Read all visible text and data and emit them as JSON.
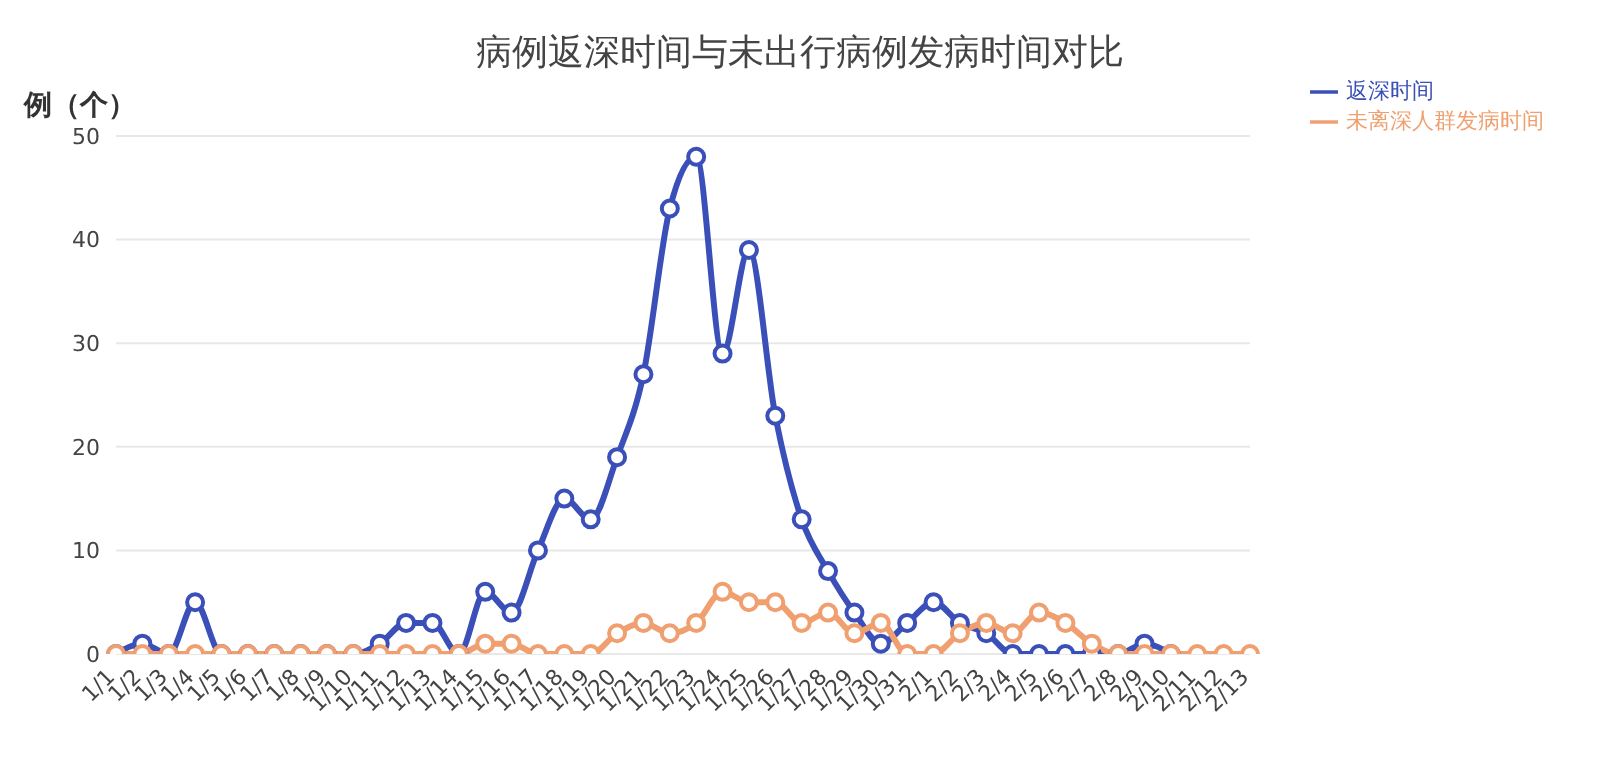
{
  "chart_data": {
    "type": "line",
    "title": "病例返深时间与未出行病例发病时间对比",
    "ylabel": "例（个）",
    "categories": [
      "1/1",
      "1/2",
      "1/3",
      "1/4",
      "1/5",
      "1/6",
      "1/7",
      "1/8",
      "1/9",
      "1/10",
      "1/11",
      "1/12",
      "1/13",
      "1/14",
      "1/15",
      "1/16",
      "1/17",
      "1/18",
      "1/19",
      "1/20",
      "1/21",
      "1/22",
      "1/23",
      "1/24",
      "1/25",
      "1/26",
      "1/27",
      "1/28",
      "1/29",
      "1/30",
      "1/31",
      "2/1",
      "2/2",
      "2/3",
      "2/4",
      "2/5",
      "2/6",
      "2/7",
      "2/8",
      "2/9",
      "2/10",
      "2/11",
      "2/12",
      "2/13"
    ],
    "series": [
      {
        "name": "返深时间",
        "color": "#3a4fb8",
        "values": [
          0,
          1,
          0,
          5,
          0,
          0,
          0,
          0,
          0,
          0,
          1,
          3,
          3,
          0,
          6,
          4,
          10,
          15,
          13,
          19,
          27,
          43,
          48,
          29,
          39,
          23,
          13,
          8,
          4,
          1,
          3,
          5,
          3,
          2,
          0,
          0,
          0,
          0,
          0,
          1,
          0,
          null,
          null,
          null
        ]
      },
      {
        "name": "未离深人群发病时间",
        "color": "#f0a070",
        "values": [
          0,
          0,
          0,
          0,
          0,
          0,
          0,
          0,
          0,
          0,
          0,
          0,
          0,
          0,
          1,
          1,
          0,
          0,
          0,
          2,
          3,
          2,
          3,
          6,
          5,
          5,
          3,
          4,
          2,
          3,
          0,
          0,
          2,
          3,
          2,
          4,
          3,
          1,
          0,
          0,
          0,
          0,
          0,
          0
        ]
      }
    ],
    "ylim": [
      0,
      50
    ],
    "yticks": [
      0,
      10,
      20,
      30,
      40,
      50
    ],
    "grid": "y",
    "legend": "top right",
    "marker": "circle",
    "line_style": "solid"
  }
}
